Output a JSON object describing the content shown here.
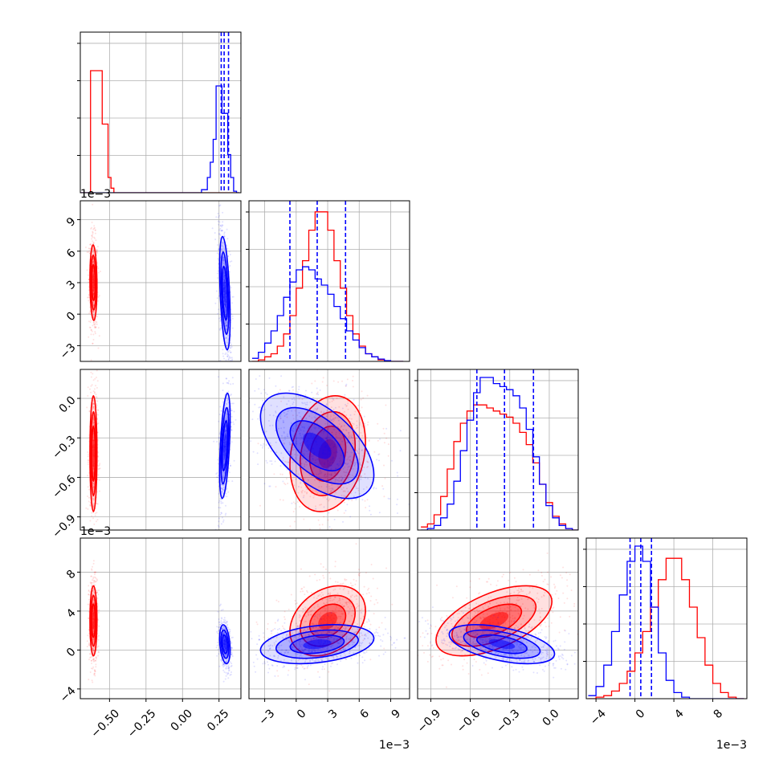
{
  "chart_data": {
    "type": "corner",
    "grid": true,
    "colors": {
      "red": "#ff0000",
      "blue": "#0000ff"
    },
    "parameters": [
      {
        "range": [
          -0.7,
          0.4
        ],
        "ticks": [
          -0.5,
          -0.25,
          0.0,
          0.25
        ],
        "tick_labels": [
          "−0.50",
          "−0.25",
          "0.00",
          "0.25"
        ],
        "offset": ""
      },
      {
        "range": [
          -0.0045,
          0.0108
        ],
        "ticks": [
          -0.003,
          0.0,
          0.003,
          0.006,
          0.009
        ],
        "tick_labels": [
          "−3",
          "0",
          "3",
          "6",
          "9"
        ],
        "offset": "1e−3"
      },
      {
        "range": [
          -1.0,
          0.22
        ],
        "ticks": [
          -0.9,
          -0.6,
          -0.3,
          0.0
        ],
        "tick_labels": [
          "−0.9",
          "−0.6",
          "−0.3",
          "0.0"
        ],
        "offset": ""
      },
      {
        "range": [
          -0.005,
          0.0115
        ],
        "ticks": [
          -0.004,
          0.0,
          0.004,
          0.008
        ],
        "tick_labels": [
          "−4",
          "0",
          "4",
          "8"
        ],
        "offset": "1e−3"
      }
    ],
    "series": [
      {
        "color": "red",
        "mean": [
          -0.61,
          0.003,
          -0.42,
          0.003
        ],
        "std": [
          0.012,
          0.0018,
          0.22,
          0.0018
        ]
      },
      {
        "color": "blue",
        "mean": [
          0.29,
          0.002,
          -0.36,
          0.0006
        ],
        "std": [
          0.018,
          0.0027,
          0.2,
          0.001
        ]
      }
    ],
    "histograms": [
      {
        "x": [
          -0.7,
          -0.68,
          -0.66,
          -0.64,
          -0.62,
          -0.6,
          -0.58,
          -0.56,
          -0.54,
          -0.52,
          -0.5,
          -0.48,
          -0.46,
          -0.44,
          -0.42,
          -0.4,
          -0.38,
          -0.36,
          -0.34,
          -0.32,
          -0.3,
          -0.28,
          -0.26,
          -0.24,
          -0.22,
          -0.2,
          -0.18,
          -0.16,
          -0.14,
          -0.12,
          -0.1,
          -0.08,
          -0.06,
          -0.04,
          -0.02,
          0.0,
          0.02,
          0.04,
          0.06,
          0.08,
          0.1,
          0.12,
          0.14,
          0.16,
          0.18,
          0.2,
          0.22,
          0.24,
          0.26,
          0.28,
          0.3,
          0.32,
          0.34,
          0.36,
          0.38
        ],
        "red": [
          0,
          0,
          0,
          0,
          0.8,
          0.8,
          0.8,
          0.8,
          0.45,
          0.45,
          0.1,
          0.03,
          0,
          0,
          0,
          0,
          0,
          0,
          0,
          0,
          0,
          0,
          0,
          0,
          0,
          0,
          0,
          0,
          0,
          0,
          0,
          0,
          0,
          0,
          0,
          0,
          0,
          0,
          0,
          0,
          0,
          0,
          0,
          0,
          0,
          0,
          0,
          0,
          0,
          0,
          0,
          0,
          0,
          0,
          0
        ],
        "blue": [
          0,
          0,
          0,
          0,
          0,
          0,
          0,
          0,
          0,
          0,
          0,
          0,
          0,
          0,
          0,
          0,
          0,
          0,
          0,
          0,
          0,
          0,
          0,
          0,
          0,
          0,
          0,
          0,
          0,
          0,
          0,
          0,
          0,
          0,
          0,
          0,
          0,
          0,
          0,
          0,
          0,
          0,
          0.02,
          0.02,
          0.1,
          0.2,
          0.35,
          0.7,
          0.7,
          0.52,
          0.52,
          0.25,
          0.1,
          0.01,
          0
        ],
        "red_note": "red peak tall narrow near -0.61",
        "blue_quantiles": [
          0.265,
          0.285,
          0.315
        ]
      },
      {
        "x": [
          -0.0039,
          -0.0033,
          -0.0027,
          -0.0021,
          -0.0015,
          -0.0009,
          -0.0003,
          0.0003,
          0.0009,
          0.0015,
          0.0021,
          0.0027,
          0.0033,
          0.0039,
          0.0045,
          0.0051,
          0.0057,
          0.0063,
          0.0069,
          0.0075,
          0.0081,
          0.0087,
          0.0093,
          0.0099
        ],
        "red": [
          0.0,
          0.01,
          0.03,
          0.05,
          0.1,
          0.18,
          0.3,
          0.48,
          0.66,
          0.86,
          0.98,
          0.98,
          0.86,
          0.66,
          0.48,
          0.3,
          0.18,
          0.1,
          0.05,
          0.03,
          0.01,
          0.0,
          0.0,
          0.0
        ],
        "blue": [
          0.02,
          0.06,
          0.12,
          0.2,
          0.3,
          0.42,
          0.52,
          0.6,
          0.62,
          0.6,
          0.54,
          0.5,
          0.44,
          0.36,
          0.28,
          0.2,
          0.14,
          0.09,
          0.05,
          0.03,
          0.015,
          0.005,
          0.0,
          0.0
        ],
        "blue_quantiles": [
          -0.0006,
          0.002,
          0.0047
        ]
      },
      {
        "x": [
          -0.95,
          -0.9,
          -0.85,
          -0.8,
          -0.75,
          -0.7,
          -0.65,
          -0.6,
          -0.55,
          -0.5,
          -0.45,
          -0.4,
          -0.35,
          -0.3,
          -0.25,
          -0.2,
          -0.15,
          -0.1,
          -0.05,
          0.0,
          0.05,
          0.1,
          0.15,
          0.2
        ],
        "red": [
          0.02,
          0.04,
          0.1,
          0.22,
          0.4,
          0.58,
          0.7,
          0.78,
          0.82,
          0.82,
          0.8,
          0.78,
          0.76,
          0.74,
          0.7,
          0.64,
          0.56,
          0.44,
          0.3,
          0.18,
          0.09,
          0.04,
          0.01,
          0.0
        ],
        "blue": [
          0.0,
          0.01,
          0.03,
          0.08,
          0.17,
          0.32,
          0.52,
          0.72,
          0.9,
          1.0,
          1.0,
          0.96,
          0.94,
          0.92,
          0.88,
          0.8,
          0.66,
          0.48,
          0.3,
          0.16,
          0.08,
          0.03,
          0.01,
          0.0
        ],
        "blue_quantiles": [
          -0.55,
          -0.34,
          -0.12
        ]
      },
      {
        "x": [
          -0.0044,
          -0.0036,
          -0.0028,
          -0.002,
          -0.0012,
          -0.0004,
          0.0004,
          0.0012,
          0.002,
          0.0028,
          0.0036,
          0.0044,
          0.0052,
          0.006,
          0.0068,
          0.0076,
          0.0084,
          0.0092,
          0.01,
          0.0108
        ],
        "red": [
          0.0,
          0.01,
          0.02,
          0.05,
          0.1,
          0.18,
          0.3,
          0.44,
          0.6,
          0.78,
          0.92,
          0.92,
          0.78,
          0.6,
          0.4,
          0.22,
          0.1,
          0.04,
          0.01,
          0.0
        ],
        "blue": [
          0.02,
          0.08,
          0.22,
          0.44,
          0.68,
          0.9,
          1.0,
          0.9,
          0.6,
          0.3,
          0.12,
          0.04,
          0.01,
          0.0,
          0.0,
          0.0,
          0.0,
          0.0,
          0.0,
          0.0
        ],
        "blue_quantiles": [
          -0.0005,
          0.0006,
          0.0017
        ]
      }
    ],
    "pair_panels": [
      {
        "row": 1,
        "col": 0
      },
      {
        "row": 2,
        "col": 0
      },
      {
        "row": 2,
        "col": 1
      },
      {
        "row": 3,
        "col": 0
      },
      {
        "row": 3,
        "col": 1
      },
      {
        "row": 3,
        "col": 2
      }
    ],
    "correlations": {
      "red": {
        "1-0": -0.1,
        "2-0": 0.0,
        "2-1": 0.2,
        "3-0": 0.0,
        "3-1": 0.3,
        "3-2": 0.55
      },
      "blue": {
        "1-0": -0.45,
        "2-0": 0.5,
        "2-1": -0.55,
        "3-0": -0.3,
        "3-1": 0.3,
        "3-2": -0.5
      }
    }
  }
}
